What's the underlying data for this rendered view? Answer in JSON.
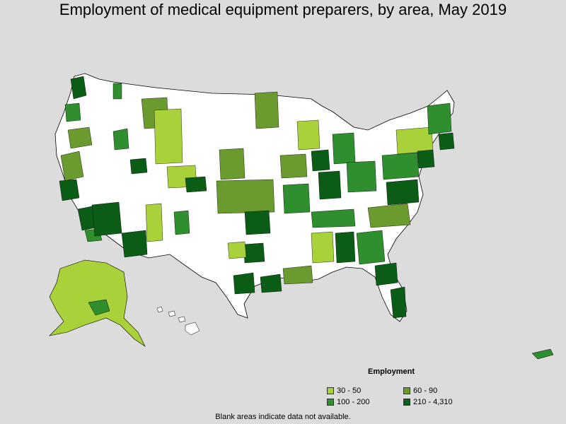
{
  "title": "Employment of medical equipment preparers, by area, May 2019",
  "legend": {
    "title": "Employment",
    "items": [
      {
        "label": "30 - 50",
        "color": "#a8d13a"
      },
      {
        "label": "60 - 90",
        "color": "#6b9a2e"
      },
      {
        "label": "100 - 200",
        "color": "#2f8f2f"
      },
      {
        "label": "210 - 4,310",
        "color": "#0b5d16"
      }
    ]
  },
  "note": "Blank areas indicate data not available.",
  "colors": {
    "background": "#dcdcdc",
    "land": "#ffffff",
    "border": "#000000"
  }
}
